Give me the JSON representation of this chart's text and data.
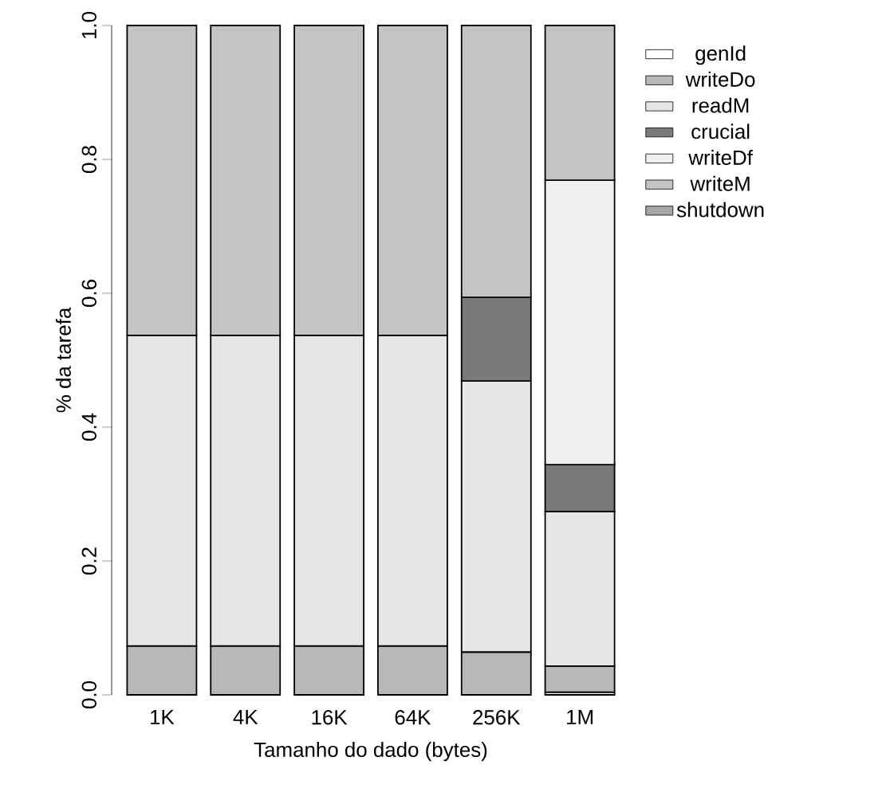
{
  "chart_data": {
    "type": "bar",
    "stacked": true,
    "xlabel": "Tamanho do dado (bytes)",
    "ylabel": "% da tarefa",
    "categories": [
      "1K",
      "4K",
      "16K",
      "64K",
      "256K",
      "1M"
    ],
    "series": [
      {
        "name": "genId",
        "color": "#ffffff",
        "values": [
          null,
          null,
          null,
          null,
          null,
          0.004
        ]
      },
      {
        "name": "writeDo",
        "color": "#b8b8b8",
        "values": [
          0.073,
          0.073,
          0.073,
          0.073,
          0.064,
          0.039
        ]
      },
      {
        "name": "readM",
        "color": "#e6e6e6",
        "values": [
          0.464,
          0.464,
          0.464,
          0.464,
          0.405,
          0.231
        ]
      },
      {
        "name": "crucial",
        "color": "#7a7a7a",
        "values": [
          null,
          null,
          null,
          null,
          0.125,
          0.07
        ]
      },
      {
        "name": "writeDf",
        "color": "#f0f0f0",
        "values": [
          null,
          null,
          null,
          null,
          null,
          0.425
        ]
      },
      {
        "name": "writeM",
        "color": "#c4c4c4",
        "values": [
          0.463,
          0.463,
          0.463,
          0.463,
          0.406,
          0.231
        ]
      },
      {
        "name": "shutdown",
        "color": "#a6a6a6",
        "values": [
          null,
          null,
          null,
          null,
          null,
          null
        ]
      }
    ],
    "ylim": [
      0,
      1
    ],
    "yticks": [
      {
        "value": 0,
        "label": "0.0"
      },
      0.2,
      0.4,
      0.6,
      0.8,
      {
        "value": 1,
        "label": "1.0"
      }
    ],
    "grid": false,
    "legend": "right"
  }
}
